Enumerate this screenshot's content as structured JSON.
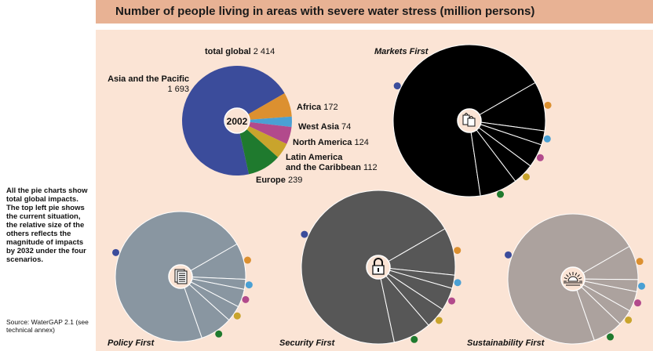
{
  "title": "Number of people living in areas with severe water stress (million persons)",
  "side_note": "All the pie charts show total global impacts. The top left pie shows the current situation, the relative size of the others reflects the magnitude of impacts by 2032 under the four scenarios.",
  "source": "Source: WaterGAP 2.1 (see technical annex)",
  "colors": {
    "asia_pacific": "#3b4c9b",
    "africa": "#dc9030",
    "west_asia": "#4aa0d4",
    "north_america": "#b24a8c",
    "latin_america": "#c9a42c",
    "europe": "#1f7a2e"
  },
  "chart_data": [
    {
      "type": "pie",
      "id": "2002",
      "center_label": "2002",
      "total_label": "total global",
      "total_value": "2 414",
      "fill": "",
      "slices": [
        {
          "name": "Asia and the Pacific",
          "value": 1693,
          "value_label": "1 693",
          "color": "#3b4c9b"
        },
        {
          "name": "Africa",
          "value": 172,
          "value_label": "172",
          "color": "#dc9030"
        },
        {
          "name": "West Asia",
          "value": 74,
          "value_label": "74",
          "color": "#4aa0d4"
        },
        {
          "name": "North America",
          "value": 124,
          "value_label": "124",
          "color": "#b24a8c"
        },
        {
          "name": "Latin America and the Caribbean",
          "name_lines": [
            "Latin America",
            "and the Caribbean"
          ],
          "value": 112,
          "value_label": "112",
          "color": "#c9a42c"
        },
        {
          "name": "Europe",
          "value": 239,
          "value_label": "239",
          "color": "#1f7a2e"
        }
      ]
    },
    {
      "type": "pie",
      "id": "markets-first",
      "scenario": "Markets First",
      "icon": "shopping-bags-icon",
      "fill": "#000000",
      "values": [
        0.69,
        0.105,
        0.03,
        0.05,
        0.045,
        0.08
      ]
    },
    {
      "type": "pie",
      "id": "policy-first",
      "scenario": "Policy First",
      "icon": "document-icon",
      "fill": "#8996a1",
      "values": [
        0.72,
        0.09,
        0.025,
        0.045,
        0.04,
        0.08
      ]
    },
    {
      "type": "pie",
      "id": "security-first",
      "scenario": "Security First",
      "icon": "padlock-icon",
      "fill": "#575757",
      "values": [
        0.7,
        0.1,
        0.028,
        0.048,
        0.044,
        0.08
      ]
    },
    {
      "type": "pie",
      "id": "sustainability-first",
      "scenario": "Sustainability First",
      "icon": "sunrise-icon",
      "fill": "#aca29e",
      "values": [
        0.72,
        0.085,
        0.03,
        0.05,
        0.04,
        0.075
      ]
    }
  ]
}
